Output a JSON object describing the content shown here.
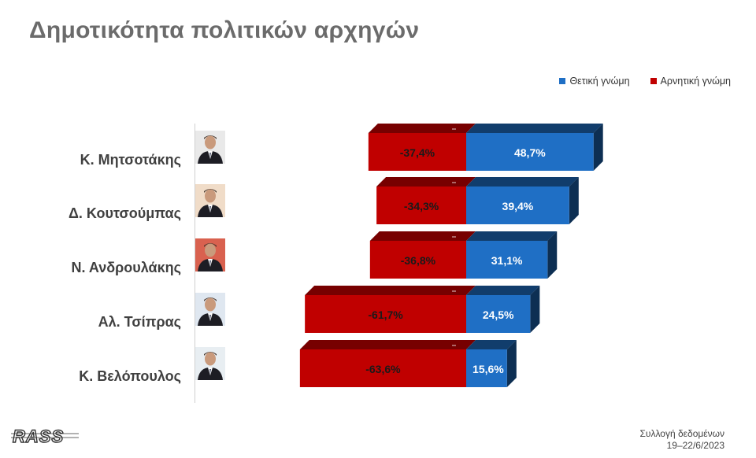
{
  "title": "Δημοτικότητα πολιτικών αρχηγών",
  "legend": {
    "positive_label": "Θετική γνώμη",
    "negative_label": "Αρνητική γνώμη",
    "positive_color": "#1f6fc5",
    "negative_color": "#c00000"
  },
  "footer": {
    "line1": "Συλλογή δεδομένων",
    "line2": "19–22/6/2023"
  },
  "logo_text": "RASS",
  "chart_data": {
    "type": "bar",
    "orientation": "horizontal-diverging",
    "categories": [
      "Κ. Μητσοτάκης",
      "Δ. Κουτσούμπας",
      "Ν. Ανδρουλάκης",
      "Αλ. Τσίπρας",
      "Κ. Βελόπουλος"
    ],
    "series": [
      {
        "name": "Θετική γνώμη",
        "values": [
          48.7,
          39.4,
          31.1,
          24.5,
          15.6
        ],
        "labels": [
          "48,7%",
          "39,4%",
          "31,1%",
          "24,5%",
          "15,6%"
        ],
        "color": "#1f6fc5"
      },
      {
        "name": "Αρνητική γνώμη",
        "values": [
          -37.4,
          -34.3,
          -36.8,
          -61.7,
          -63.6
        ],
        "labels": [
          "-37,4%",
          "-34,3%",
          "-36,8%",
          "-61,7%",
          "-63,6%"
        ],
        "color": "#c00000"
      }
    ],
    "legend_position": "top-right",
    "grid": false
  }
}
